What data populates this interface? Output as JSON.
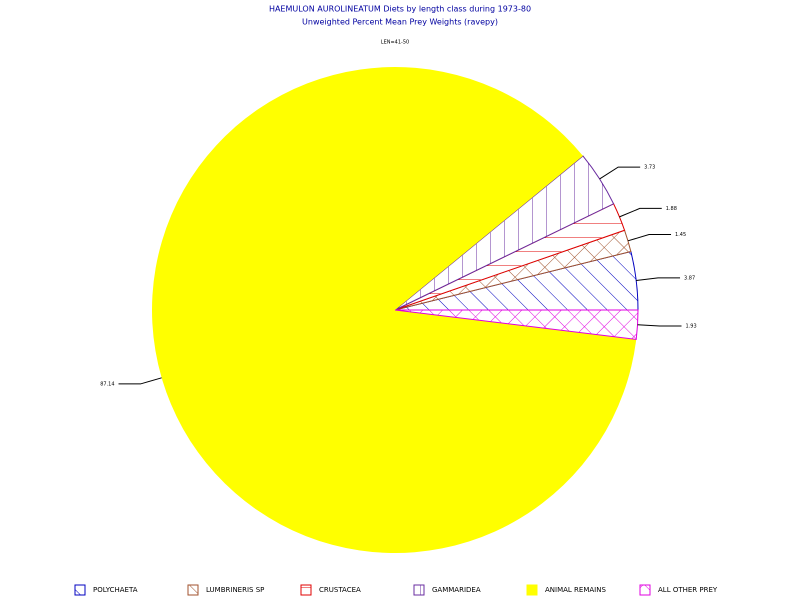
{
  "chart_data": {
    "type": "pie",
    "title": "HAEMULON AUROLINEATUM Diets by length class during 1973-80",
    "subtitle": "Unweighted Percent Mean Prey Weights (ravepy)",
    "annotation": "LEN=41-50",
    "categories": [
      "POLYCHAETA",
      "LUMBRINERIS SP",
      "CRUSTACEA",
      "GAMMARIDEA",
      "ANIMAL REMAINS",
      "ALL OTHER PREY"
    ],
    "values": [
      3.87,
      1.45,
      1.88,
      3.73,
      87.14,
      1.93
    ],
    "colors": [
      "#0000c0",
      "#a0522d",
      "#e00000",
      "#6a2ca0",
      "#ffff00",
      "#e000e0"
    ],
    "fills": [
      "diagonal",
      "crosshatch",
      "horizontal",
      "vertical",
      "solid",
      "crosshatch"
    ],
    "legend": "bottom"
  }
}
